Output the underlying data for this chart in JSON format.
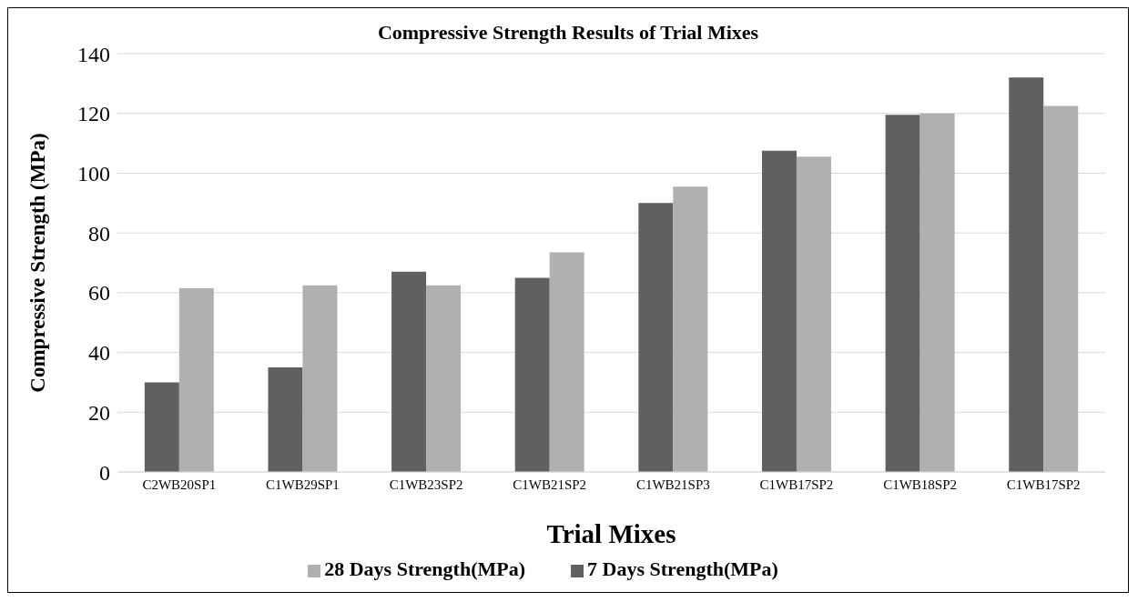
{
  "chart_data": {
    "type": "bar",
    "title": "Compressive Strength Results of Trial Mixes",
    "xlabel": "Trial Mixes",
    "ylabel": "Compressive Strength (MPa)",
    "categories": [
      "C2WB20SP1",
      "C1WB29SP1",
      "C1WB23SP2",
      "C1WB21SP2",
      "C1WB21SP3",
      "C1WB17SP2",
      "C1WB18SP2",
      "C1WB17SP2"
    ],
    "series": [
      {
        "name": "7 Days Strength(MPa)",
        "color": "#606060",
        "values": [
          30,
          35,
          67,
          65,
          90,
          107.5,
          119.5,
          132
        ]
      },
      {
        "name": "28 Days Strength(MPa)",
        "color": "#b0b0b0",
        "values": [
          61.5,
          62.5,
          62.5,
          73.5,
          95.5,
          105.5,
          120,
          122.5
        ]
      }
    ],
    "ylim": [
      0,
      140
    ],
    "yticks": [
      0,
      20,
      40,
      60,
      80,
      100,
      120,
      140
    ],
    "grid": "y",
    "legend": "bottom"
  }
}
